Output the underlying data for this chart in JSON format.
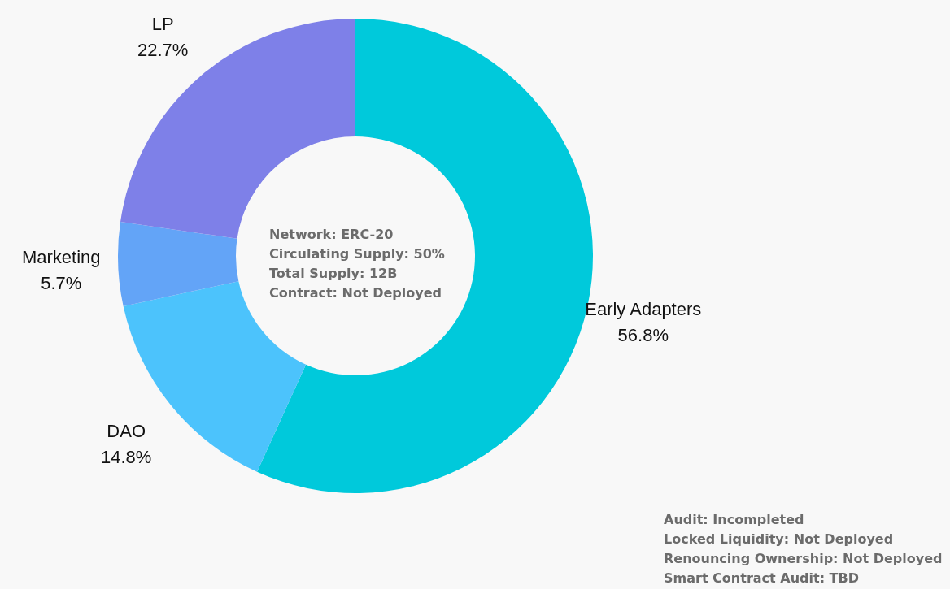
{
  "chart_data": {
    "type": "donut",
    "categories": [
      "Early Adapters",
      "DAO",
      "Marketing",
      "LP"
    ],
    "values": [
      56.8,
      14.8,
      5.7,
      22.7
    ],
    "colors": [
      "#00c9db",
      "#4cc3fc",
      "#63a4f7",
      "#7e80e8"
    ],
    "value_labels": [
      "56.8%",
      "14.8%",
      "5.7%",
      "22.7%"
    ],
    "annotations": [
      "Network: ERC-20",
      "Circulating Supply: 50%",
      "Total Supply: 12B",
      "Contract: Not Deployed",
      "Audit: Incompleted",
      "Locked Liquidity: Not Deployed",
      "Renouncing Ownership: Not Deployed",
      "Smart Contract Audit: TBD"
    ]
  }
}
